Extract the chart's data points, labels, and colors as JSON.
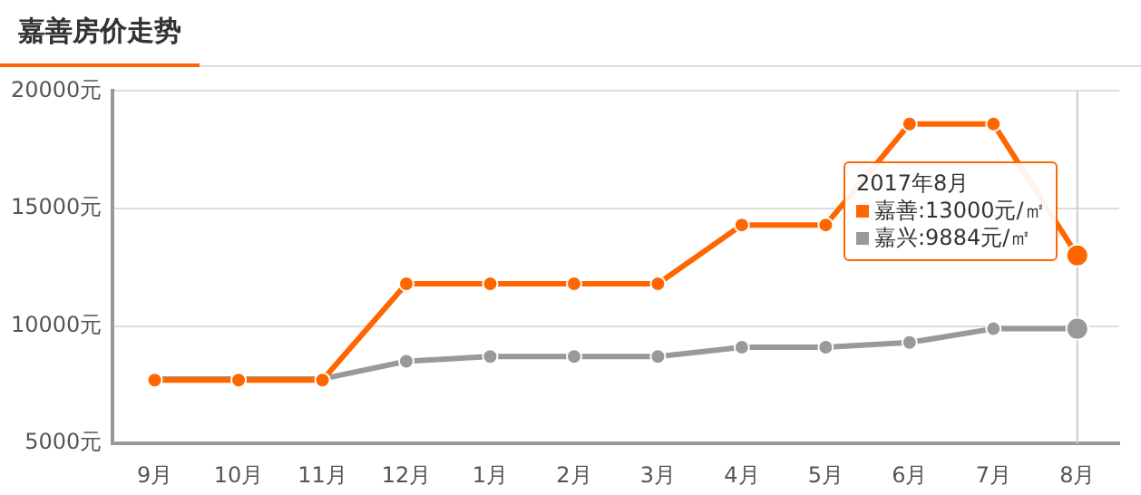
{
  "chart_data": {
    "type": "line",
    "title": "嘉善房价走势",
    "categories": [
      "9月",
      "10月",
      "11月",
      "12月",
      "1月",
      "2月",
      "3月",
      "4月",
      "5月",
      "6月",
      "7月",
      "8月"
    ],
    "series": [
      {
        "name": "嘉善",
        "color": "#ff6600",
        "values": [
          7700,
          7700,
          7700,
          11800,
          11800,
          11800,
          11800,
          14300,
          14300,
          18600,
          18600,
          13000
        ]
      },
      {
        "name": "嘉兴",
        "color": "#999999",
        "values": [
          7750,
          7750,
          7750,
          8500,
          8700,
          8700,
          8700,
          9100,
          9100,
          9300,
          9884,
          9884
        ]
      }
    ],
    "ylim": [
      5000,
      20000
    ],
    "yticks": [
      {
        "value": 5000,
        "label": "5000元"
      },
      {
        "value": 10000,
        "label": "10000元"
      },
      {
        "value": 15000,
        "label": "15000元"
      },
      {
        "value": 20000,
        "label": "20000元"
      }
    ],
    "grid": "y",
    "marker": "circle",
    "line_style": "solid",
    "legend": "top right",
    "ref_lines": [
      {
        "axis": "x",
        "value": "8月",
        "color": "#cccccc"
      }
    ],
    "annotations": [
      "2017年8月",
      ":13000元/㎡",
      ":9884元/㎡"
    ]
  }
}
